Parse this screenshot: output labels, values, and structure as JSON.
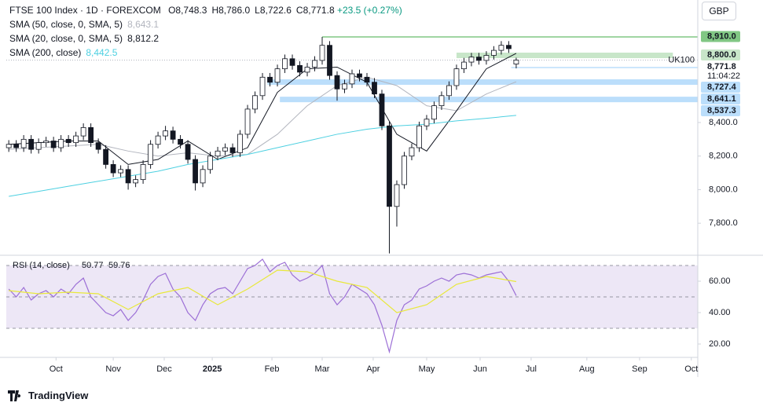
{
  "header": {
    "symbol": "FTSE 100 Index · 1D · FOREXCOM",
    "ohlc": [
      {
        "label": "O",
        "value": "8,748.3"
      },
      {
        "label": "H",
        "value": "8,786.0"
      },
      {
        "label": "L",
        "value": "8,722.6"
      },
      {
        "label": "C",
        "value": "8,771.8"
      }
    ],
    "change": "+23.5 (+0.27%)"
  },
  "currency": "GBP",
  "footer": "TradingView",
  "chart_data": [
    {
      "type": "candlestick",
      "x": [
        1,
        4,
        7,
        10,
        13,
        16,
        19,
        22,
        25,
        28,
        31,
        34,
        37,
        40,
        43,
        46,
        49,
        52,
        55,
        58,
        61,
        64,
        67,
        70,
        73,
        76,
        79,
        82,
        85,
        88,
        91,
        94,
        97,
        100,
        103,
        106,
        109,
        112,
        115,
        118,
        121,
        124,
        127,
        130,
        133,
        136,
        139,
        142,
        145,
        148,
        151,
        154,
        157,
        160,
        163,
        166,
        169,
        172,
        175,
        178,
        181,
        184,
        187,
        190,
        193,
        196,
        199,
        202,
        205
      ],
      "open": [
        8250,
        8270,
        8250,
        8300,
        8240,
        8280,
        8290,
        8250,
        8300,
        8280,
        8320,
        8370,
        8280,
        8240,
        8150,
        8100,
        8120,
        8040,
        8060,
        8150,
        8270,
        8320,
        8350,
        8300,
        8270,
        8180,
        8040,
        8120,
        8200,
        8230,
        8250,
        8220,
        8330,
        8480,
        8560,
        8670,
        8640,
        8720,
        8780,
        8740,
        8700,
        8730,
        8770,
        8860,
        8680,
        8600,
        8630,
        8690,
        8670,
        8640,
        8570,
        8380,
        7900,
        8030,
        8200,
        8250,
        8380,
        8420,
        8500,
        8560,
        8620,
        8720,
        8760,
        8790,
        8770,
        8800,
        8830,
        8860,
        8748.3
      ],
      "high": [
        8295,
        8295,
        8325,
        8325,
        8305,
        8315,
        8315,
        8325,
        8325,
        8345,
        8395,
        8395,
        8305,
        8265,
        8175,
        8145,
        8145,
        8085,
        8175,
        8295,
        8345,
        8380,
        8375,
        8325,
        8295,
        8205,
        8145,
        8225,
        8255,
        8275,
        8275,
        8355,
        8505,
        8585,
        8695,
        8695,
        8745,
        8805,
        8805,
        8765,
        8755,
        8795,
        8910,
        8885,
        8705,
        8655,
        8715,
        8715,
        8695,
        8665,
        8595,
        8405,
        8055,
        8225,
        8275,
        8405,
        8445,
        8525,
        8585,
        8645,
        8745,
        8785,
        8815,
        8815,
        8825,
        8855,
        8885,
        8885,
        8786
      ],
      "low": [
        8225,
        8225,
        8225,
        8215,
        8215,
        8255,
        8225,
        8225,
        8255,
        8255,
        8295,
        8255,
        8215,
        8125,
        8075,
        8075,
        8000,
        8015,
        8035,
        8125,
        8245,
        8295,
        8275,
        8245,
        8155,
        7995,
        8015,
        8095,
        8175,
        8205,
        8195,
        8195,
        8305,
        8455,
        8535,
        8615,
        8615,
        8695,
        8715,
        8675,
        8675,
        8705,
        8745,
        8655,
        8530,
        8575,
        8605,
        8645,
        8615,
        8545,
        8355,
        7620,
        7780,
        8005,
        8175,
        8225,
        8355,
        8395,
        8475,
        8535,
        8595,
        8695,
        8735,
        8745,
        8745,
        8775,
        8805,
        8815,
        8722.6
      ],
      "close": [
        8270,
        8250,
        8300,
        8240,
        8280,
        8290,
        8250,
        8300,
        8280,
        8320,
        8370,
        8280,
        8240,
        8150,
        8100,
        8120,
        8040,
        8060,
        8150,
        8270,
        8320,
        8350,
        8300,
        8270,
        8180,
        8040,
        8120,
        8200,
        8230,
        8250,
        8220,
        8330,
        8480,
        8560,
        8670,
        8640,
        8720,
        8780,
        8740,
        8700,
        8730,
        8770,
        8860,
        8680,
        8600,
        8630,
        8690,
        8670,
        8640,
        8570,
        8380,
        7900,
        8030,
        8200,
        8250,
        8380,
        8420,
        8500,
        8560,
        8620,
        8720,
        8760,
        8790,
        8770,
        8800,
        8830,
        8860,
        8840,
        8771.8
      ],
      "up_color": "#ffffff",
      "down_color": "#131722",
      "border_color": "#131722",
      "xlim": [
        0,
        278
      ],
      "ylim": [
        7609,
        9130
      ],
      "yticks": [
        {
          "value": 8400,
          "label": "8,400.0"
        },
        {
          "value": 8200,
          "label": "8,200.0"
        },
        {
          "value": 8000,
          "label": "8,000.0"
        },
        {
          "value": 7800,
          "label": "7,800.0"
        }
      ],
      "series": [
        {
          "name": "SMA (50, close, 0, SMA, 5)",
          "color": "#b2b5be",
          "value_label": "8,643.1",
          "x": [
            1,
            13,
            25,
            37,
            49,
            61,
            73,
            85,
            97,
            109,
            121,
            133,
            145,
            157,
            169,
            181,
            193,
            205
          ],
          "values": [
            8240,
            8250,
            8260,
            8270,
            8230,
            8200,
            8220,
            8200,
            8210,
            8330,
            8500,
            8620,
            8670,
            8620,
            8500,
            8470,
            8570,
            8643.1
          ]
        },
        {
          "name": "SMA (20, close, 0, SMA, 5)",
          "color": "#131722",
          "value_label": "8,812.2",
          "x": [
            1,
            13,
            25,
            37,
            49,
            61,
            73,
            85,
            97,
            109,
            121,
            133,
            145,
            157,
            169,
            181,
            193,
            205
          ],
          "values": [
            8270,
            8280,
            8290,
            8290,
            8150,
            8180,
            8290,
            8180,
            8250,
            8580,
            8720,
            8730,
            8640,
            8330,
            8230,
            8470,
            8720,
            8812.2
          ]
        },
        {
          "name": "SMA (200, close)",
          "color": "#4dd0e1",
          "value_label": "8,442.5",
          "x": [
            1,
            13,
            25,
            37,
            49,
            61,
            73,
            85,
            97,
            109,
            121,
            133,
            145,
            157,
            169,
            181,
            193,
            205
          ],
          "values": [
            7960,
            7990,
            8020,
            8050,
            8080,
            8110,
            8150,
            8180,
            8210,
            8250,
            8290,
            8330,
            8360,
            8380,
            8390,
            8410,
            8425,
            8442.5
          ]
        }
      ],
      "levels": [
        {
          "value": 8910,
          "label": "8,910.0",
          "style": "line",
          "color": "#81c784",
          "x_start": 127
        },
        {
          "value": 8800,
          "label": "8,800.0",
          "style": "band",
          "color": "#c8e6c9",
          "x_start": 181,
          "x_end": 268
        },
        {
          "value": 8727.4,
          "label": "8,727.4",
          "style": "line",
          "color": "#bbdefb",
          "x_start": 203
        },
        {
          "value": 8641.1,
          "label": "8,641.1",
          "style": "band",
          "color": "#bbdefb",
          "x_start": 105
        },
        {
          "value": 8537.3,
          "label": "8,537.3",
          "style": "band",
          "color": "#bbdefb",
          "x_start": 110
        }
      ],
      "last_price": {
        "value": 8771.8,
        "label": "8,771.8",
        "symbol": "UK100",
        "countdown": "11:04:22"
      }
    },
    {
      "type": "line",
      "title": "RSI (14, close)",
      "xlim": [
        0,
        278
      ],
      "ylim": [
        11.5,
        76.5
      ],
      "yticks": [
        {
          "value": 60,
          "label": "60.00"
        },
        {
          "value": 40,
          "label": "40.00"
        },
        {
          "value": 20,
          "label": "20.00"
        }
      ],
      "band": [
        30,
        70
      ],
      "band_color": "#ede7f6",
      "guides": [
        70,
        50,
        30
      ],
      "xticks": [
        {
          "value": 20,
          "label": "Oct"
        },
        {
          "value": 43,
          "label": "Nov"
        },
        {
          "value": 63.5,
          "label": "Dec"
        },
        {
          "value": 82.8,
          "label": "2025"
        },
        {
          "value": 106.8,
          "label": "Feb"
        },
        {
          "value": 127,
          "label": "Mar"
        },
        {
          "value": 147.5,
          "label": "Apr"
        },
        {
          "value": 169,
          "label": "May"
        },
        {
          "value": 190.5,
          "label": "Jun"
        },
        {
          "value": 211,
          "label": "Jul"
        },
        {
          "value": 233.4,
          "label": "Aug"
        },
        {
          "value": 254.6,
          "label": "Sep"
        },
        {
          "value": 275.4,
          "label": "Oct"
        }
      ],
      "series": [
        {
          "color": "#9c6fd6",
          "value_label": "50.77",
          "x": [
            1,
            4,
            7,
            10,
            13,
            16,
            19,
            22,
            25,
            28,
            31,
            34,
            37,
            40,
            43,
            46,
            49,
            52,
            55,
            58,
            61,
            64,
            67,
            70,
            73,
            76,
            79,
            82,
            85,
            88,
            91,
            94,
            97,
            100,
            103,
            106,
            109,
            112,
            115,
            118,
            121,
            124,
            127,
            130,
            133,
            136,
            139,
            142,
            145,
            148,
            151,
            154,
            157,
            160,
            163,
            166,
            169,
            172,
            175,
            178,
            181,
            184,
            187,
            190,
            193,
            196,
            199,
            202,
            205
          ],
          "values": [
            55,
            50,
            56,
            48,
            52,
            54,
            50,
            55,
            52,
            58,
            62,
            50,
            45,
            40,
            38,
            42,
            35,
            40,
            48,
            58,
            63,
            65,
            55,
            50,
            40,
            35,
            45,
            52,
            55,
            56,
            52,
            60,
            68,
            70,
            74,
            66,
            70,
            72,
            64,
            60,
            62,
            65,
            70,
            52,
            45,
            50,
            58,
            55,
            52,
            45,
            32,
            15,
            35,
            45,
            48,
            55,
            57,
            60,
            62,
            60,
            64,
            65,
            64,
            62,
            64,
            65,
            66,
            60,
            50.77
          ]
        },
        {
          "color": "#e8e83a",
          "value_label": "59.76",
          "x": [
            1,
            13,
            25,
            37,
            49,
            61,
            73,
            85,
            97,
            109,
            121,
            133,
            145,
            157,
            169,
            181,
            193,
            205
          ],
          "values": [
            54,
            52,
            53,
            52,
            42,
            52,
            56,
            45,
            55,
            67,
            66,
            60,
            56,
            40,
            45,
            58,
            63,
            59.76
          ]
        }
      ]
    }
  ]
}
